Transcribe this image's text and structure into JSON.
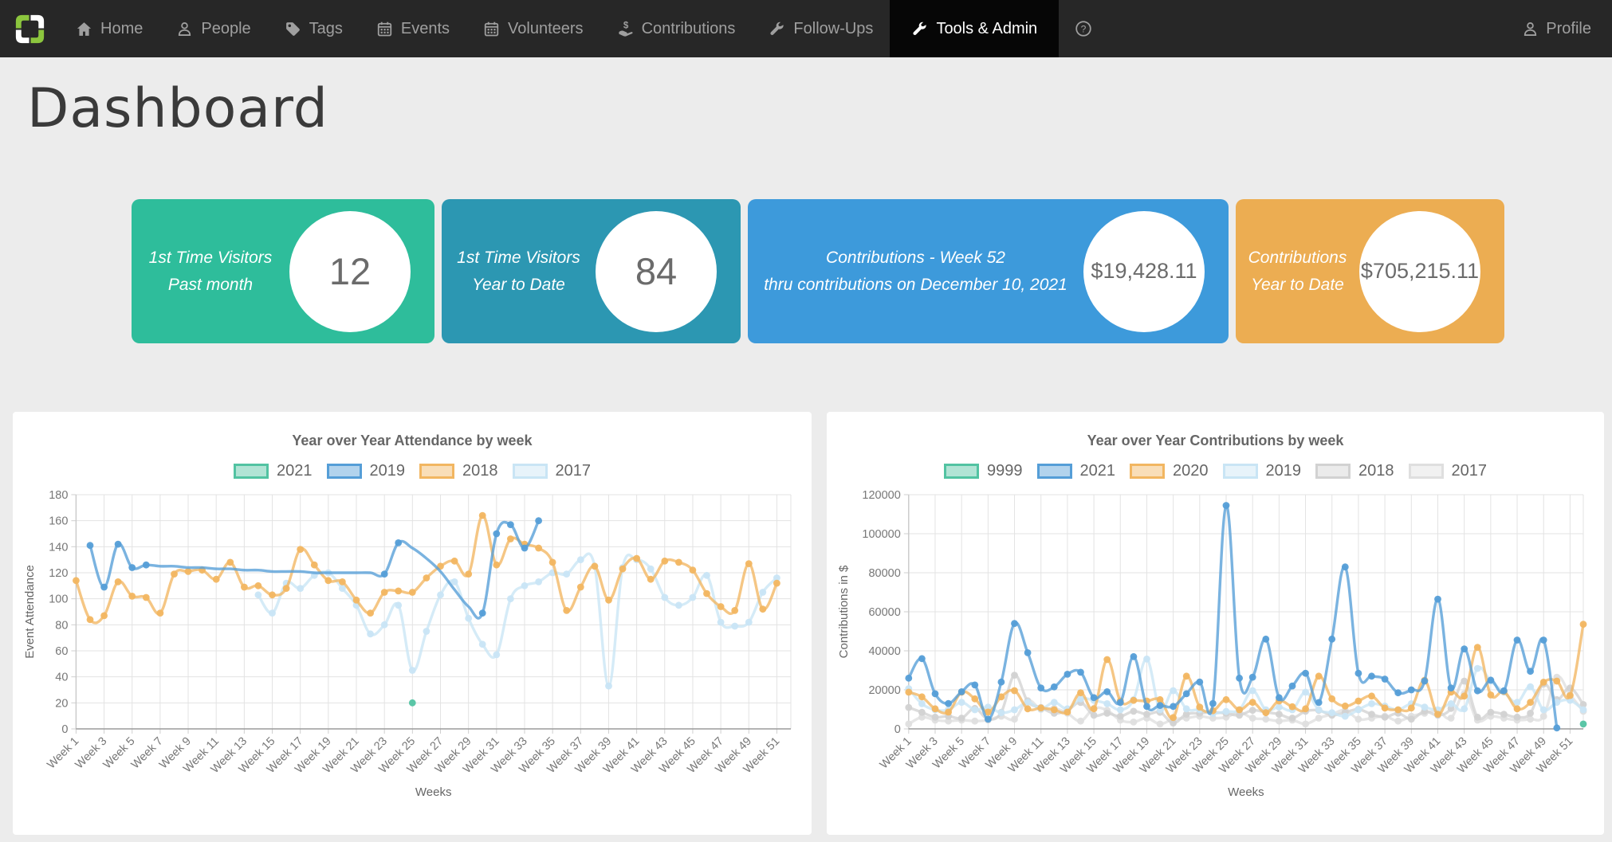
{
  "nav": {
    "items": [
      {
        "label": "Home",
        "icon": "home-icon",
        "active": false
      },
      {
        "label": "People",
        "icon": "people-icon",
        "active": false
      },
      {
        "label": "Tags",
        "icon": "tag-icon",
        "active": false
      },
      {
        "label": "Events",
        "icon": "calendar-icon",
        "active": false
      },
      {
        "label": "Volunteers",
        "icon": "calendar-icon",
        "active": false
      },
      {
        "label": "Contributions",
        "icon": "hand-coin-icon",
        "active": false
      },
      {
        "label": "Follow-Ups",
        "icon": "wrench-icon",
        "active": false
      },
      {
        "label": "Tools & Admin",
        "icon": "wrench-icon",
        "active": true
      }
    ],
    "profile_label": "Profile",
    "colors": {
      "bar": "#272727",
      "active_bg": "#060606",
      "text": "#9f9f9f",
      "active_text": "#ffffff",
      "logo_green": "#8cc63e"
    }
  },
  "page_title": "Dashboard",
  "stat_cards": [
    {
      "lines": [
        "1st Time Visitors",
        "Past month"
      ],
      "value": "12",
      "color": "#2ebd9b"
    },
    {
      "lines": [
        "1st Time Visitors",
        "Year to Date"
      ],
      "value": "84",
      "color": "#2c97b2"
    },
    {
      "lines": [
        "Contributions - Week 52",
        "thru contributions on December 10, 2021"
      ],
      "value": "$19,428.11",
      "color": "#3d9adb"
    },
    {
      "lines": [
        "Contributions",
        "Year to Date"
      ],
      "value": "$705,215.11",
      "color": "#ecad52"
    }
  ],
  "chart_data": [
    {
      "type": "line",
      "title": "Year over Year Attendance by week",
      "xlabel": "Weeks",
      "ylabel": "Event Attendance",
      "ylim": [
        0,
        180
      ],
      "ytick_step": 20,
      "grid": true,
      "legend_position": "top",
      "x_labels_shown": "every_other",
      "categories": [
        "Week 1",
        "Week 2",
        "Week 3",
        "Week 4",
        "Week 5",
        "Week 6",
        "Week 7",
        "Week 8",
        "Week 9",
        "Week 10",
        "Week 11",
        "Week 12",
        "Week 13",
        "Week 14",
        "Week 15",
        "Week 16",
        "Week 17",
        "Week 18",
        "Week 19",
        "Week 20",
        "Week 21",
        "Week 22",
        "Week 23",
        "Week 24",
        "Week 25",
        "Week 26",
        "Week 27",
        "Week 28",
        "Week 29",
        "Week 30",
        "Week 31",
        "Week 32",
        "Week 33",
        "Week 34",
        "Week 35",
        "Week 36",
        "Week 37",
        "Week 38",
        "Week 39",
        "Week 40",
        "Week 41",
        "Week 42",
        "Week 43",
        "Week 44",
        "Week 45",
        "Week 46",
        "Week 47",
        "Week 48",
        "Week 49",
        "Week 50",
        "Week 51",
        "Week 52"
      ],
      "series": [
        {
          "name": "2021",
          "color": "#52c3a2",
          "values": [
            null,
            null,
            null,
            null,
            null,
            null,
            null,
            null,
            null,
            null,
            null,
            null,
            null,
            null,
            null,
            null,
            null,
            null,
            null,
            null,
            null,
            null,
            null,
            null,
            20,
            null,
            null,
            null,
            null,
            null,
            null,
            null,
            null,
            null,
            null,
            null,
            null,
            null,
            null,
            null,
            null,
            null,
            null,
            null,
            null,
            null,
            null,
            null,
            null,
            null,
            null,
            null
          ]
        },
        {
          "name": "2019",
          "color": "#559ed7",
          "marker_weeks": [
            2,
            3,
            4,
            5,
            6,
            23,
            24,
            30,
            31,
            32,
            33,
            34
          ],
          "values": [
            null,
            141,
            109,
            142,
            124,
            126,
            125,
            125,
            124,
            124,
            123,
            123,
            122,
            122,
            121,
            121,
            121,
            120,
            120,
            120,
            120,
            120,
            119,
            143,
            139,
            131,
            121,
            107,
            94,
            89,
            150,
            157,
            139,
            160,
            null,
            null,
            null,
            null,
            null,
            null,
            null,
            null,
            null,
            null,
            null,
            null,
            null,
            null,
            null,
            null,
            null,
            null
          ]
        },
        {
          "name": "2018",
          "color": "#f2b661",
          "values": [
            114,
            84,
            87,
            113,
            102,
            101,
            89,
            119,
            121,
            122,
            115,
            128,
            109,
            110,
            103,
            108,
            138,
            126,
            114,
            113,
            99,
            89,
            105,
            106,
            105,
            116,
            125,
            129,
            119,
            164,
            126,
            146,
            142,
            139,
            128,
            91,
            109,
            125,
            99,
            123,
            131,
            115,
            129,
            128,
            122,
            104,
            94,
            91,
            127,
            92,
            112,
            null
          ]
        },
        {
          "name": "2017",
          "color": "#c9e5f5",
          "values": [
            null,
            null,
            null,
            null,
            null,
            null,
            null,
            null,
            null,
            null,
            null,
            null,
            null,
            103,
            89,
            112,
            108,
            118,
            120,
            108,
            95,
            73,
            80,
            95,
            45,
            75,
            103,
            113,
            85,
            65,
            57,
            100,
            110,
            113,
            120,
            119,
            130,
            125,
            33,
            124,
            130,
            123,
            101,
            95,
            101,
            118,
            82,
            79,
            82,
            105,
            116,
            null
          ]
        }
      ]
    },
    {
      "type": "line",
      "title": "Year over Year Contributions by week",
      "xlabel": "Weeks",
      "ylabel": "Contributions in $",
      "ylim": [
        0,
        120000
      ],
      "ytick_step": 20000,
      "grid": true,
      "legend_position": "top",
      "x_labels_shown": "every_other",
      "categories": [
        "Week 1",
        "Week 2",
        "Week 3",
        "Week 4",
        "Week 5",
        "Week 6",
        "Week 7",
        "Week 8",
        "Week 9",
        "Week 10",
        "Week 11",
        "Week 12",
        "Week 13",
        "Week 14",
        "Week 15",
        "Week 16",
        "Week 17",
        "Week 18",
        "Week 19",
        "Week 20",
        "Week 21",
        "Week 22",
        "Week 23",
        "Week 24",
        "Week 25",
        "Week 26",
        "Week 27",
        "Week 28",
        "Week 29",
        "Week 30",
        "Week 31",
        "Week 32",
        "Week 33",
        "Week 34",
        "Week 35",
        "Week 36",
        "Week 37",
        "Week 38",
        "Week 39",
        "Week 40",
        "Week 41",
        "Week 42",
        "Week 43",
        "Week 44",
        "Week 45",
        "Week 46",
        "Week 47",
        "Week 48",
        "Week 49",
        "Week 50",
        "Week 51",
        "Week 52"
      ],
      "series": [
        {
          "name": "9999",
          "color": "#52c3a2",
          "values": [
            null,
            null,
            null,
            null,
            null,
            null,
            null,
            null,
            null,
            null,
            null,
            null,
            null,
            null,
            null,
            null,
            null,
            null,
            null,
            null,
            null,
            null,
            null,
            null,
            null,
            null,
            null,
            null,
            null,
            null,
            null,
            null,
            null,
            null,
            null,
            null,
            null,
            null,
            null,
            null,
            null,
            null,
            null,
            null,
            null,
            null,
            null,
            null,
            null,
            null,
            null,
            2500
          ]
        },
        {
          "name": "2021",
          "color": "#559ed7",
          "values": [
            26000,
            36000,
            18000,
            13000,
            19000,
            22500,
            5000,
            24000,
            54000,
            39000,
            21000,
            21500,
            28000,
            29000,
            16000,
            19000,
            13500,
            37000,
            11500,
            12000,
            11500,
            18000,
            24000,
            13000,
            114500,
            26000,
            26500,
            46000,
            16000,
            22000,
            28500,
            13500,
            46000,
            83000,
            28500,
            27000,
            25500,
            18500,
            20000,
            24500,
            66500,
            21000,
            41000,
            19500,
            25000,
            19500,
            45500,
            29500,
            45500,
            500,
            null,
            null
          ]
        },
        {
          "name": "2020",
          "color": "#f2b661",
          "values": [
            18800,
            16400,
            10300,
            8600,
            18800,
            15400,
            8600,
            16400,
            19600,
            10300,
            10700,
            9800,
            8600,
            18500,
            10300,
            35500,
            14300,
            14600,
            14300,
            15000,
            5800,
            27000,
            11200,
            9300,
            15000,
            9800,
            13600,
            8300,
            14300,
            11400,
            10300,
            27000,
            15400,
            11700,
            14300,
            16800,
            10700,
            9800,
            10700,
            24900,
            7500,
            18800,
            16800,
            41800,
            17400,
            19200,
            10300,
            13600,
            23900,
            24500,
            17100,
            53600
          ]
        },
        {
          "name": "2019",
          "color": "#c9e5f5",
          "values": [
            20600,
            12900,
            9800,
            9800,
            13600,
            9800,
            11200,
            8300,
            9800,
            13600,
            10300,
            13600,
            10300,
            15400,
            14600,
            12900,
            9800,
            15000,
            35800,
            9800,
            19600,
            10300,
            9800,
            7900,
            8900,
            9800,
            19600,
            9800,
            11200,
            9800,
            18800,
            9800,
            8300,
            6500,
            9800,
            12900,
            11700,
            9800,
            12900,
            11200,
            9800,
            12900,
            10300,
            31000,
            24500,
            18800,
            13600,
            21600,
            9800,
            13600,
            14600,
            9800
          ]
        },
        {
          "name": "2018",
          "color": "#d2d2d2",
          "values": [
            11000,
            8500,
            6000,
            6500,
            5500,
            10500,
            5000,
            8500,
            27500,
            14000,
            11000,
            8000,
            9500,
            13500,
            7000,
            8000,
            6500,
            9000,
            7500,
            8500,
            3000,
            7500,
            8000,
            8500,
            8000,
            7000,
            9500,
            8500,
            7500,
            5500,
            9000,
            9500,
            7000,
            8500,
            10000,
            7500,
            6000,
            8000,
            5000,
            9000,
            7000,
            10500,
            24500,
            6000,
            8500,
            7500,
            6000,
            8000,
            23000,
            15000,
            21000,
            12500
          ]
        },
        {
          "name": "2017",
          "color": "#dfdfdf",
          "values": [
            2500,
            6000,
            4500,
            4000,
            4500,
            4000,
            4500,
            6500,
            5000,
            14500,
            10000,
            10500,
            8000,
            4000,
            10500,
            9500,
            4500,
            3500,
            5500,
            2500,
            5000,
            5500,
            6500,
            5500,
            6000,
            8500,
            5500,
            5000,
            4000,
            4500,
            2500,
            5500,
            7500,
            9500,
            5000,
            5500,
            6500,
            4000,
            6500,
            8000,
            9000,
            5500,
            18000,
            4500,
            6500,
            5500,
            4500,
            5000,
            6500,
            26500,
            17500,
            9000
          ]
        }
      ]
    }
  ]
}
